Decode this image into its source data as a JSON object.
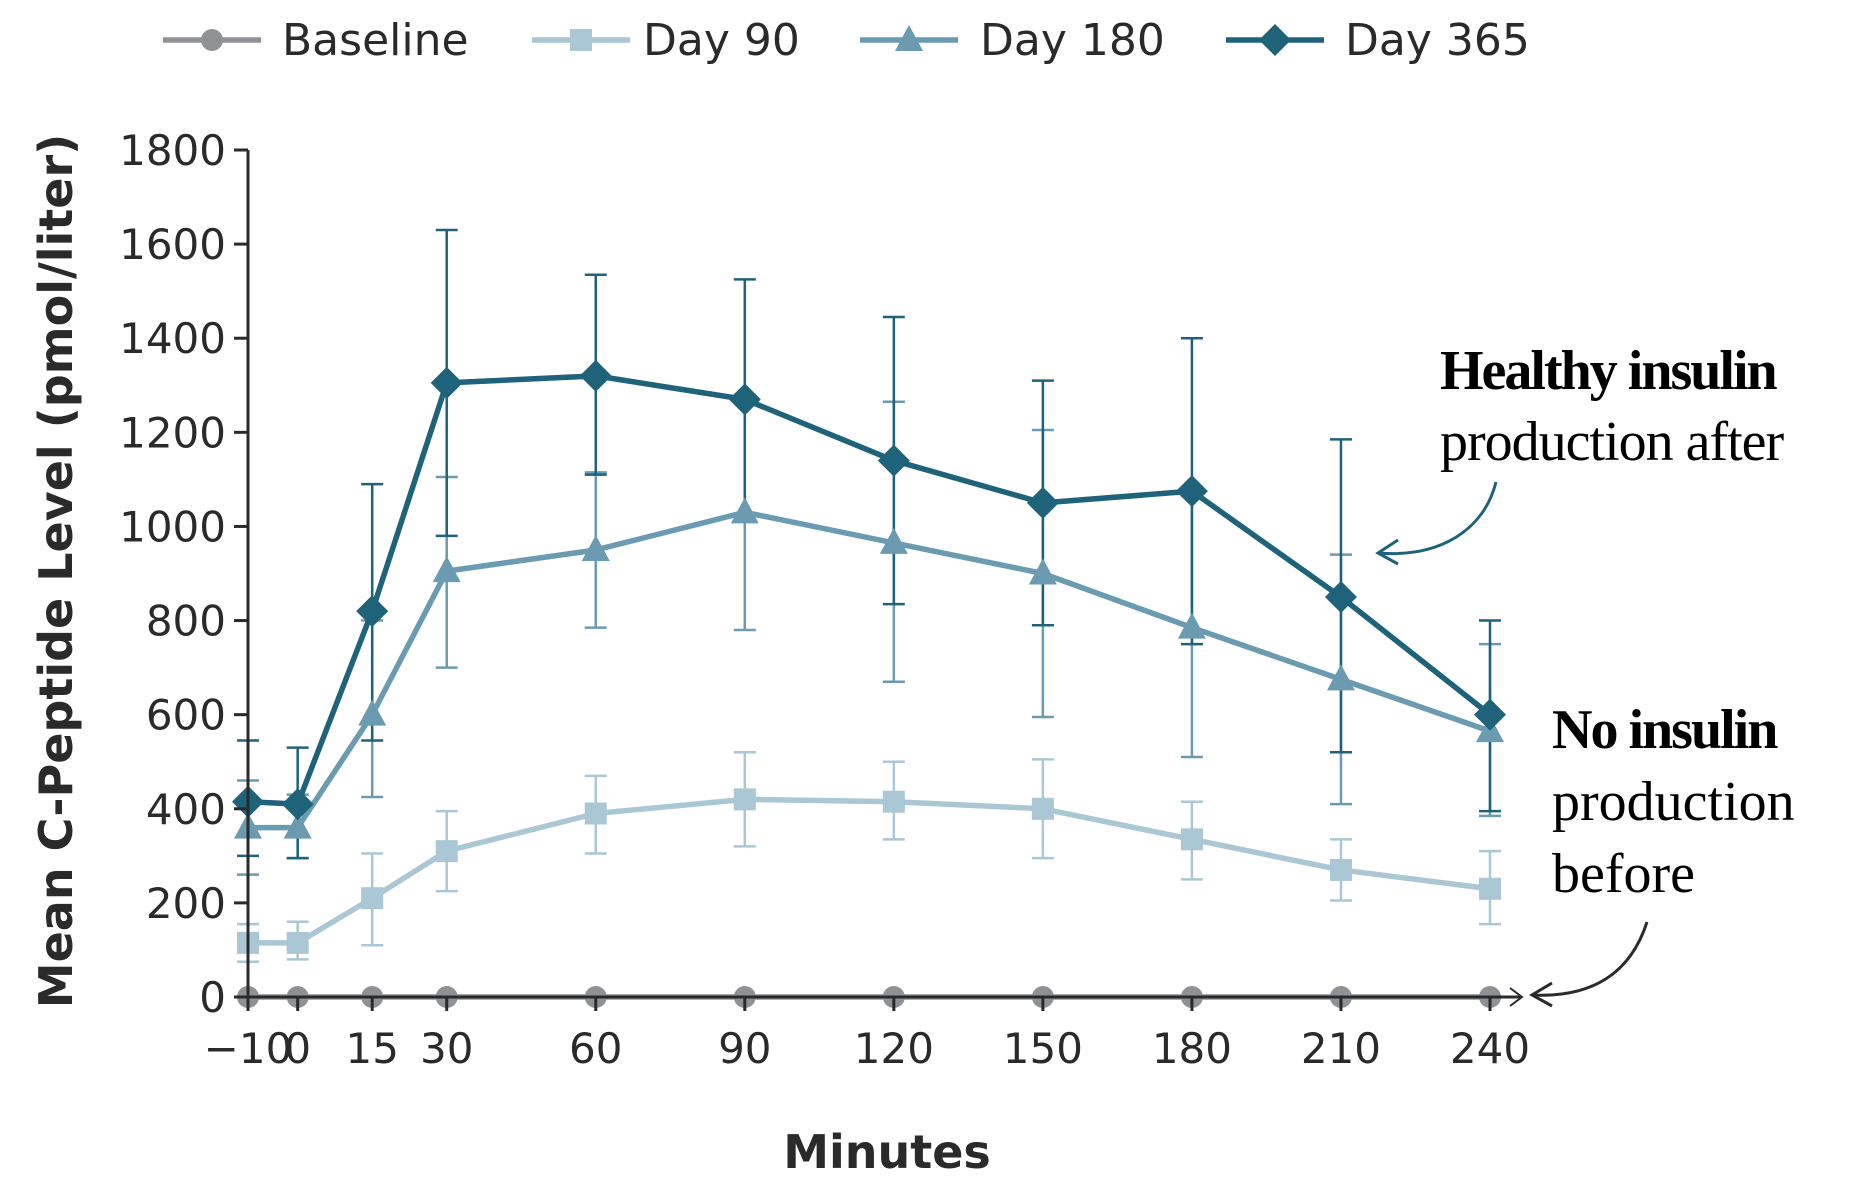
{
  "colors": {
    "baseline": "#8f9195",
    "day90": "#a9c7d4",
    "day180": "#6a9bb0",
    "day365": "#1e6379",
    "axis": "#2a2a2a",
    "annotation_arrow_top": "#1e6379",
    "annotation_arrow_bottom": "#2b2b2b"
  },
  "legend": {
    "position": "top",
    "items": [
      {
        "series": 0,
        "label": "Baseline",
        "marker": "circle"
      },
      {
        "series": 1,
        "label": "Day 90",
        "marker": "square"
      },
      {
        "series": 2,
        "label": "Day 180",
        "marker": "triangle"
      },
      {
        "series": 3,
        "label": "Day 365",
        "marker": "diamond"
      }
    ]
  },
  "annotations": {
    "top": {
      "bold": "Healthy insulin",
      "regular": "production after"
    },
    "bottom": {
      "bold": "No insulin",
      "line2": "production",
      "line3": "before"
    }
  },
  "chart_data": {
    "type": "line",
    "title": "",
    "xlabel": "Minutes",
    "ylabel": "Mean C-Peptide Level (pmol/liter)",
    "x": [
      -10,
      0,
      15,
      30,
      60,
      90,
      120,
      150,
      180,
      210,
      240
    ],
    "x_tick_labels": [
      "−10",
      "0",
      "15",
      "30",
      "60",
      "90",
      "120",
      "150",
      "180",
      "210",
      "240"
    ],
    "ylim": [
      0,
      1800
    ],
    "y_ticks": [
      0,
      200,
      400,
      600,
      800,
      1000,
      1200,
      1400,
      1600,
      1800
    ],
    "grid": false,
    "error_bars": true,
    "series": [
      {
        "name": "Baseline",
        "marker": "circle",
        "values": [
          0,
          0,
          0,
          0,
          0,
          0,
          0,
          0,
          0,
          0,
          0
        ],
        "err_low": [
          0,
          0,
          0,
          0,
          0,
          0,
          0,
          0,
          0,
          0,
          0
        ],
        "err_high": [
          0,
          0,
          0,
          0,
          0,
          0,
          0,
          0,
          0,
          0,
          0
        ]
      },
      {
        "name": "Day 90",
        "marker": "square",
        "values": [
          115,
          115,
          210,
          310,
          390,
          420,
          415,
          400,
          335,
          270,
          230
        ],
        "err_low": [
          75,
          80,
          110,
          225,
          305,
          320,
          335,
          295,
          250,
          205,
          155
        ],
        "err_high": [
          155,
          160,
          305,
          395,
          470,
          520,
          500,
          505,
          415,
          335,
          310
        ]
      },
      {
        "name": "Day 180",
        "marker": "triangle",
        "values": [
          360,
          360,
          600,
          905,
          950,
          1030,
          965,
          900,
          785,
          675,
          565
        ],
        "err_low": [
          260,
          295,
          425,
          700,
          785,
          780,
          670,
          595,
          510,
          410,
          385
        ],
        "err_high": [
          460,
          430,
          800,
          1105,
          1115,
          1280,
          1265,
          1205,
          1065,
          940,
          750
        ]
      },
      {
        "name": "Day 365",
        "marker": "diamond",
        "values": [
          415,
          410,
          820,
          1305,
          1320,
          1270,
          1140,
          1050,
          1075,
          850,
          600
        ],
        "err_low": [
          300,
          295,
          545,
          980,
          1110,
          1010,
          835,
          790,
          750,
          520,
          395
        ],
        "err_high": [
          545,
          530,
          1090,
          1630,
          1535,
          1525,
          1445,
          1310,
          1400,
          1185,
          800
        ]
      }
    ]
  }
}
